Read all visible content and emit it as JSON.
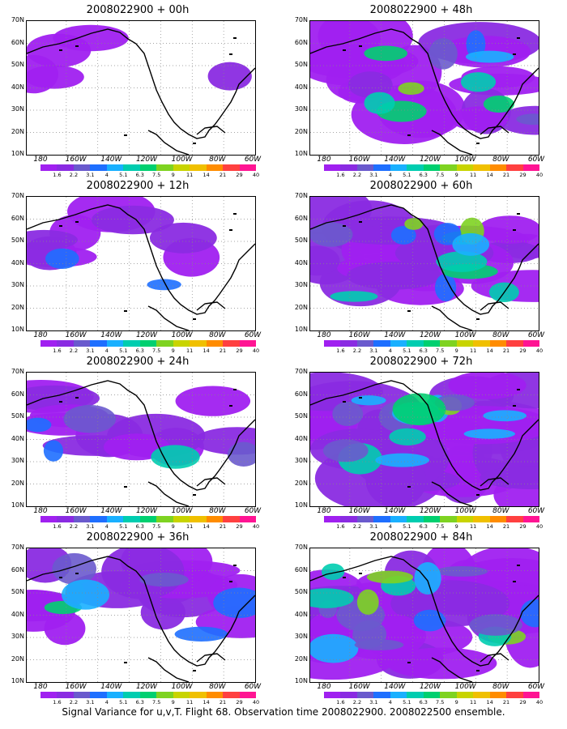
{
  "panels": [
    {
      "title": "2008022900 + 00h",
      "col": 0,
      "row": 0,
      "level": 0
    },
    {
      "title": "2008022900 + 12h",
      "col": 0,
      "row": 1,
      "level": 1
    },
    {
      "title": "2008022900 + 24h",
      "col": 0,
      "row": 2,
      "level": 2
    },
    {
      "title": "2008022900 + 36h",
      "col": 0,
      "row": 3,
      "level": 3
    },
    {
      "title": "2008022900 + 48h",
      "col": 1,
      "row": 0,
      "level": 4
    },
    {
      "title": "2008022900 + 60h",
      "col": 1,
      "row": 1,
      "level": 5
    },
    {
      "title": "2008022900 + 72h",
      "col": 1,
      "row": 2,
      "level": 6
    },
    {
      "title": "2008022900 + 84h",
      "col": 1,
      "row": 3,
      "level": 7
    }
  ],
  "lat_labels": [
    "70N",
    "60N",
    "50N",
    "40N",
    "30N",
    "20N",
    "10N"
  ],
  "lon_labels": [
    "180",
    "160W",
    "140W",
    "120W",
    "100W",
    "80W",
    "60W"
  ],
  "colorbar": {
    "labels": [
      "1.6",
      "2.2",
      "3.1",
      "4",
      "5.1",
      "6.3",
      "7.5",
      "9",
      "11",
      "14",
      "21",
      "29",
      "40"
    ],
    "colors": [
      "#ffffff",
      "#a020f0",
      "#8a2be2",
      "#6a5acd",
      "#1e6fff",
      "#19b0ff",
      "#00cdb0",
      "#00d070",
      "#7ed321",
      "#c8d400",
      "#f0c000",
      "#ff8c00",
      "#ff4040",
      "#ff1493"
    ]
  },
  "caption": "Signal Variance for u,v,T. Flight 68. Observation time 2008022900. 2008022500 ensemble."
}
